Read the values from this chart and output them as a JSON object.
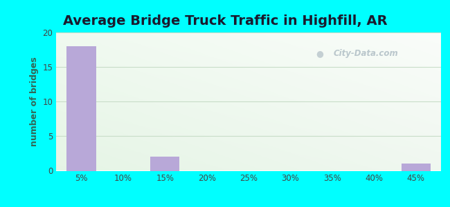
{
  "title": "Average Bridge Truck Traffic in Highfill, AR",
  "xlabel": "",
  "ylabel": "number of bridges",
  "bar_positions": [
    5,
    10,
    15,
    20,
    25,
    30,
    35,
    40,
    45
  ],
  "bar_values": [
    18,
    0,
    2,
    0,
    0,
    0,
    0,
    0,
    1
  ],
  "bar_color": "#b8a8d8",
  "bar_width": 3.5,
  "xlim": [
    2,
    48
  ],
  "ylim": [
    0,
    20
  ],
  "xtick_labels": [
    "5%",
    "10%",
    "15%",
    "20%",
    "25%",
    "30%",
    "35%",
    "40%",
    "45%"
  ],
  "xtick_positions": [
    5,
    10,
    15,
    20,
    25,
    30,
    35,
    40,
    45
  ],
  "ytick_positions": [
    0,
    5,
    10,
    15,
    20
  ],
  "ytick_labels": [
    "0",
    "5",
    "10",
    "15",
    "20"
  ],
  "background_outer": "#00ffff",
  "plot_bg_topleft": "#e6f5e6",
  "plot_bg_topright": "#f0fbf0",
  "plot_bg_bottomleft": "#d8f0d8",
  "plot_bg_bottomright": "#eefaee",
  "grid_color": "#c8ddc8",
  "title_fontsize": 14,
  "title_color": "#1a1a2e",
  "axis_label_fontsize": 9,
  "ylabel_color": "#336655",
  "tick_color": "#444444",
  "watermark_text": "City-Data.com"
}
